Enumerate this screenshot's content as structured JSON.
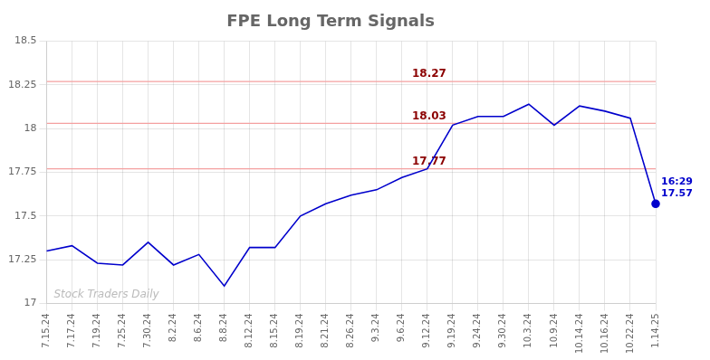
{
  "chart_data": {
    "type": "line",
    "title": "FPE Long Term Signals",
    "categories": [
      "7.15.24",
      "7.17.24",
      "7.19.24",
      "7.25.24",
      "7.30.24",
      "8.2.24",
      "8.6.24",
      "8.8.24",
      "8.12.24",
      "8.15.24",
      "8.19.24",
      "8.21.24",
      "8.26.24",
      "9.3.24",
      "9.6.24",
      "9.12.24",
      "9.19.24",
      "9.24.24",
      "9.30.24",
      "10.3.24",
      "10.9.24",
      "10.14.24",
      "10.16.24",
      "10.22.24",
      "1.14.25"
    ],
    "values": [
      17.3,
      17.33,
      17.23,
      17.22,
      17.35,
      17.22,
      17.28,
      17.1,
      17.32,
      17.32,
      17.5,
      17.57,
      17.62,
      17.65,
      17.72,
      17.77,
      18.02,
      18.07,
      18.07,
      18.14,
      18.02,
      18.13,
      18.1,
      18.06,
      17.57
    ],
    "color": "#0000CC",
    "marker": "last",
    "ylim": [
      17.0,
      18.5
    ],
    "yticks": [
      17.0,
      17.25,
      17.5,
      17.75,
      18.0,
      18.25,
      18.5
    ],
    "grid": true,
    "hlines": [
      {
        "value": 18.27,
        "label": "18.27"
      },
      {
        "value": 18.03,
        "label": "18.03"
      },
      {
        "value": 17.77,
        "label": "17.77"
      }
    ],
    "hline_color": "#F4A0A0",
    "hline_label_color": "#8B0000",
    "annotations": [
      {
        "x": "1.14.25",
        "y": 17.57,
        "text": "16:29\n17.57"
      }
    ],
    "watermark": "Stock Traders Daily"
  }
}
